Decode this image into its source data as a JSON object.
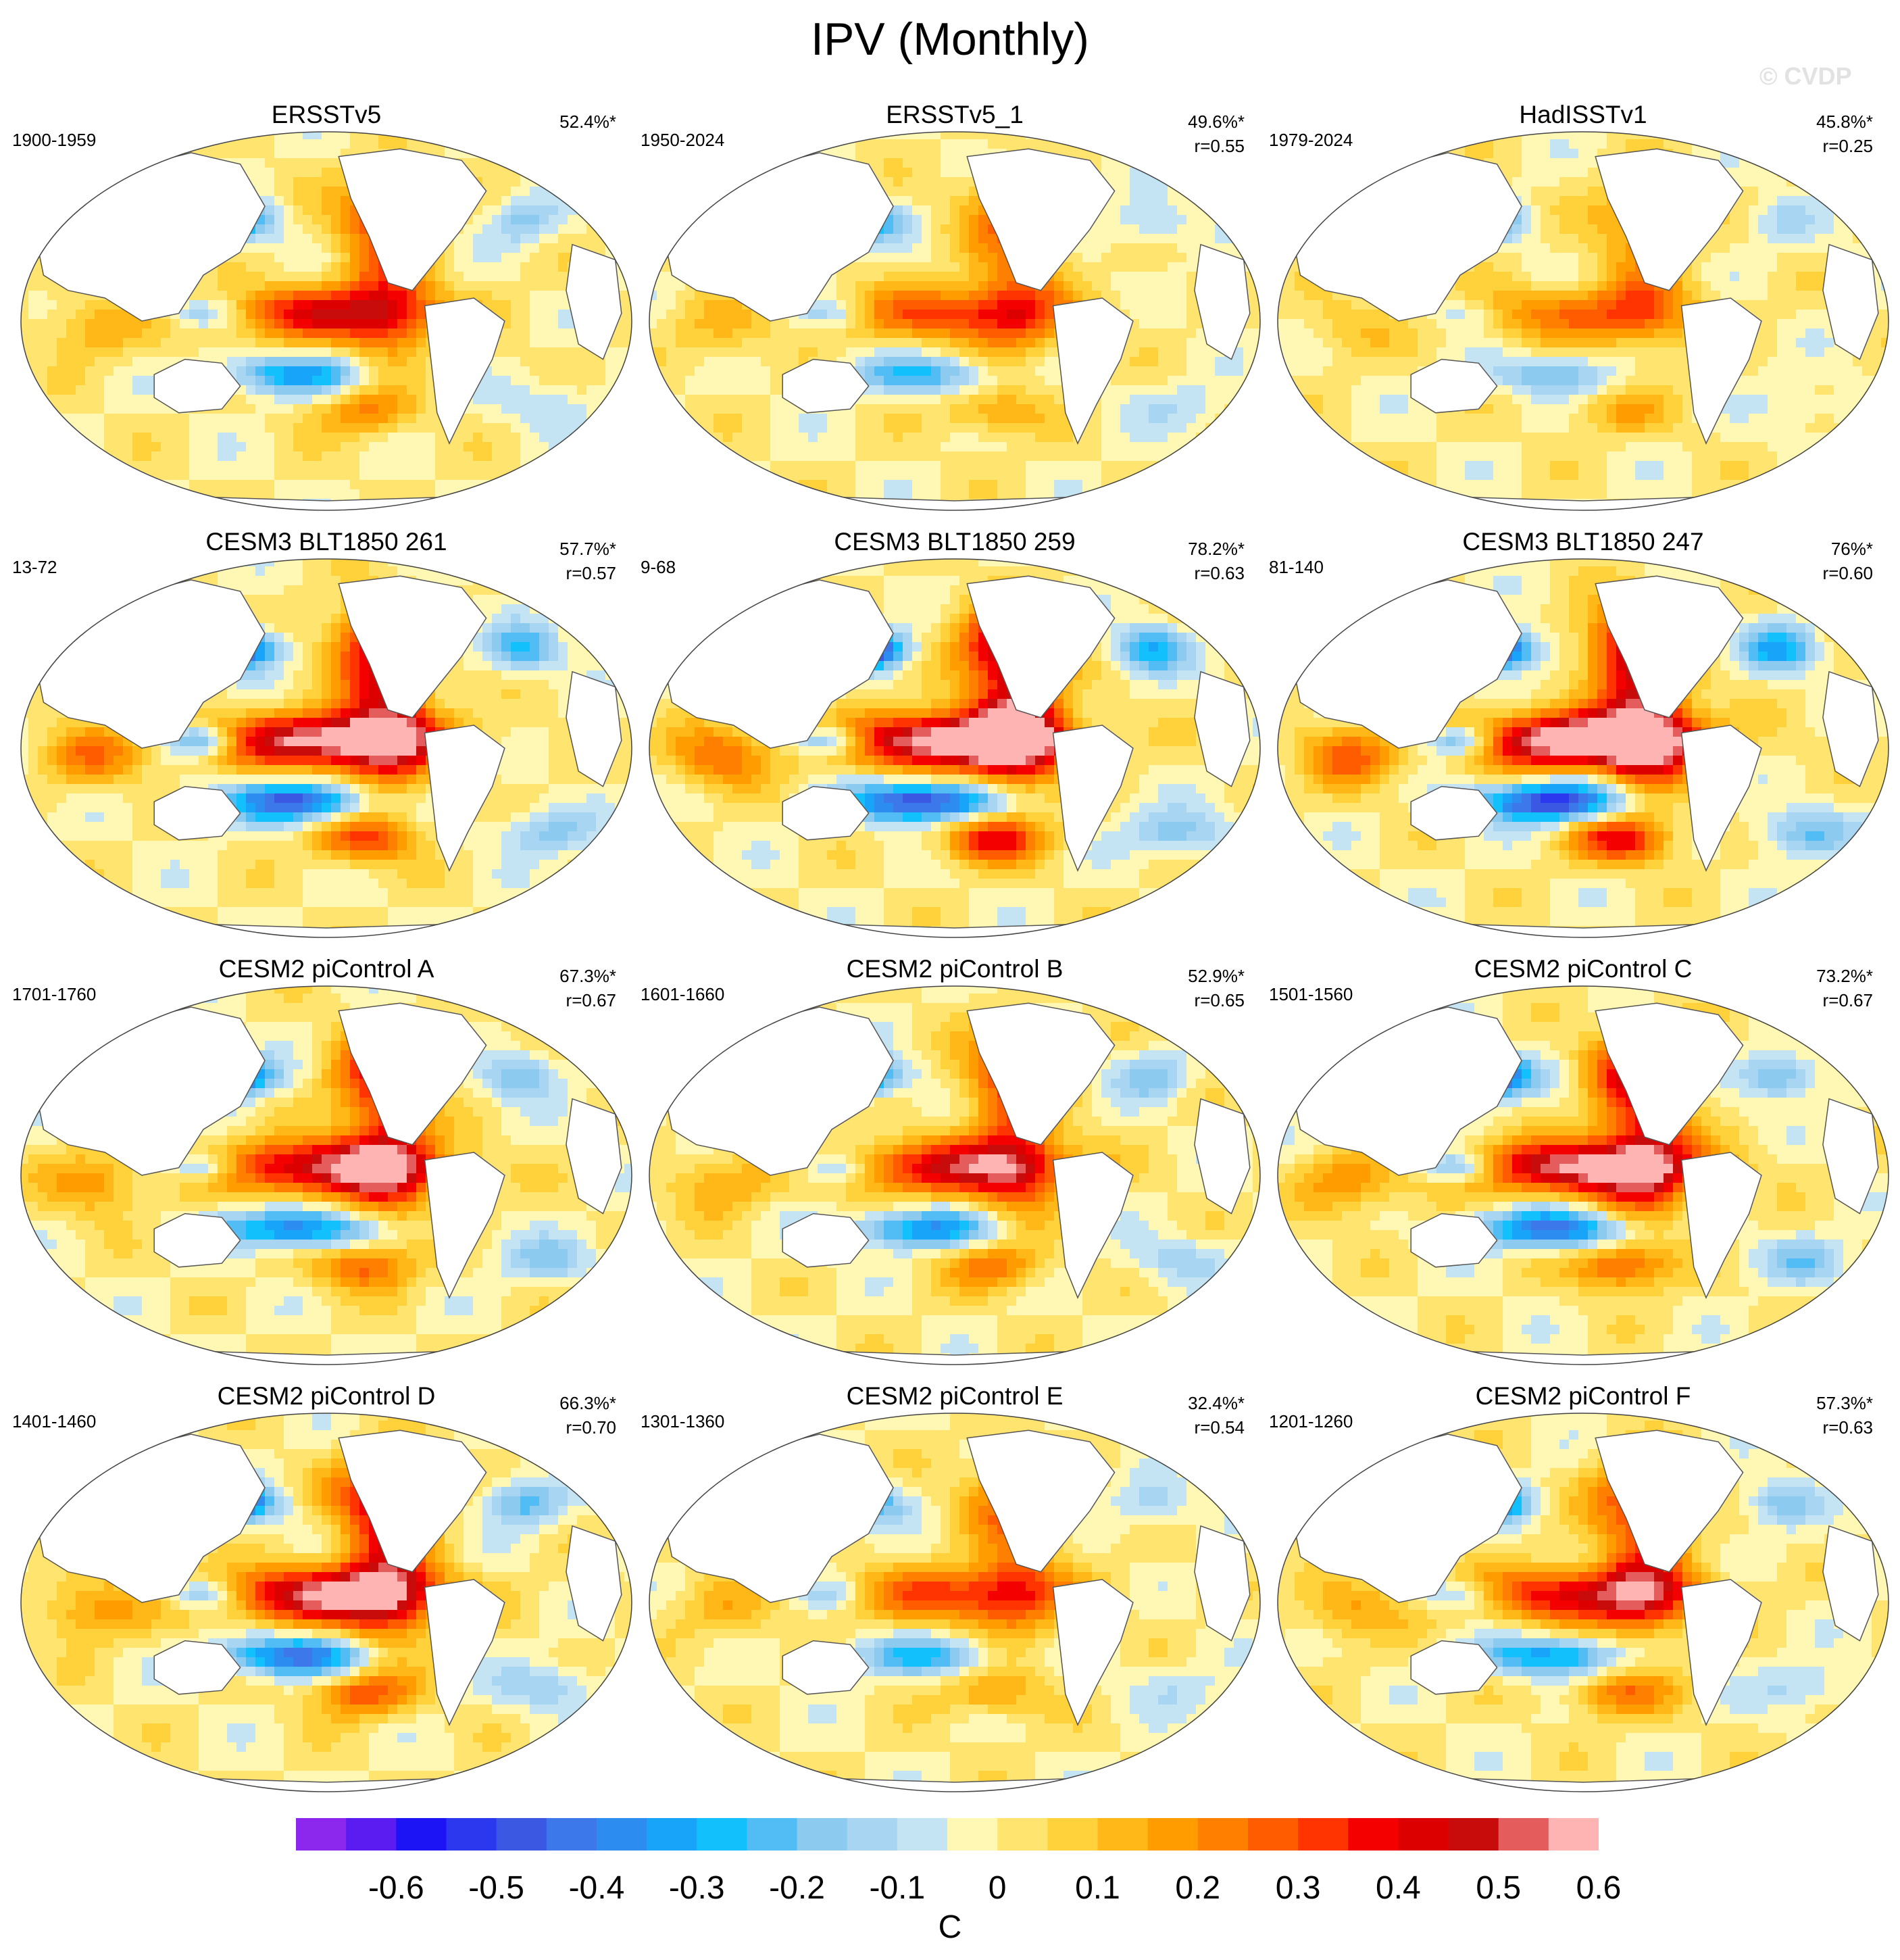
{
  "title": "IPV (Monthly)",
  "watermark": "© CVDP",
  "panels": [
    {
      "title": "ERSSTv5",
      "period": "1900-1959",
      "stat1": "52.4%*",
      "stat2": ""
    },
    {
      "title": "ERSSTv5_1",
      "period": "1950-2024",
      "stat1": "49.6%*",
      "stat2": "r=0.55"
    },
    {
      "title": "HadISSTv1",
      "period": "1979-2024",
      "stat1": "45.8%*",
      "stat2": "r=0.25"
    },
    {
      "title": "CESM3 BLT1850 261",
      "period": "13-72",
      "stat1": "57.7%*",
      "stat2": "r=0.57"
    },
    {
      "title": "CESM3 BLT1850 259",
      "period": "9-68",
      "stat1": "78.2%*",
      "stat2": "r=0.63"
    },
    {
      "title": "CESM3 BLT1850 247",
      "period": "81-140",
      "stat1": "76%*",
      "stat2": "r=0.60"
    },
    {
      "title": "CESM2 piControl A",
      "period": "1701-1760",
      "stat1": "67.3%*",
      "stat2": "r=0.67"
    },
    {
      "title": "CESM2 piControl B",
      "period": "1601-1660",
      "stat1": "52.9%*",
      "stat2": "r=0.65"
    },
    {
      "title": "CESM2 piControl C",
      "period": "1501-1560",
      "stat1": "73.2%*",
      "stat2": "r=0.67"
    },
    {
      "title": "CESM2 piControl D",
      "period": "1401-1460",
      "stat1": "66.3%*",
      "stat2": "r=0.70"
    },
    {
      "title": "CESM2 piControl E",
      "period": "1301-1360",
      "stat1": "32.4%*",
      "stat2": "r=0.54"
    },
    {
      "title": "CESM2 piControl F",
      "period": "1201-1260",
      "stat1": "57.3%*",
      "stat2": "r=0.63"
    }
  ],
  "colorbar": {
    "units": "C",
    "labels": [
      "-0.6",
      "-0.5",
      "-0.4",
      "-0.3",
      "-0.2",
      "-0.1",
      "0",
      "0.1",
      "0.2",
      "0.3",
      "0.4",
      "0.5",
      "0.6"
    ],
    "colors": [
      "#8c28ee",
      "#5a1cf0",
      "#1c14f5",
      "#2c38ee",
      "#3a58e2",
      "#3c78ea",
      "#2c8cf0",
      "#18a4f8",
      "#12c0fc",
      "#52bcf4",
      "#8ccaf0",
      "#a8d6f2",
      "#c4e4f4",
      "#fff8b4",
      "#ffe470",
      "#ffd23c",
      "#ffb818",
      "#ff9c00",
      "#ff8000",
      "#ff5c00",
      "#ff3400",
      "#f40000",
      "#dc0000",
      "#c80c0c",
      "#e45c5c",
      "#ffb4b4"
    ]
  }
}
